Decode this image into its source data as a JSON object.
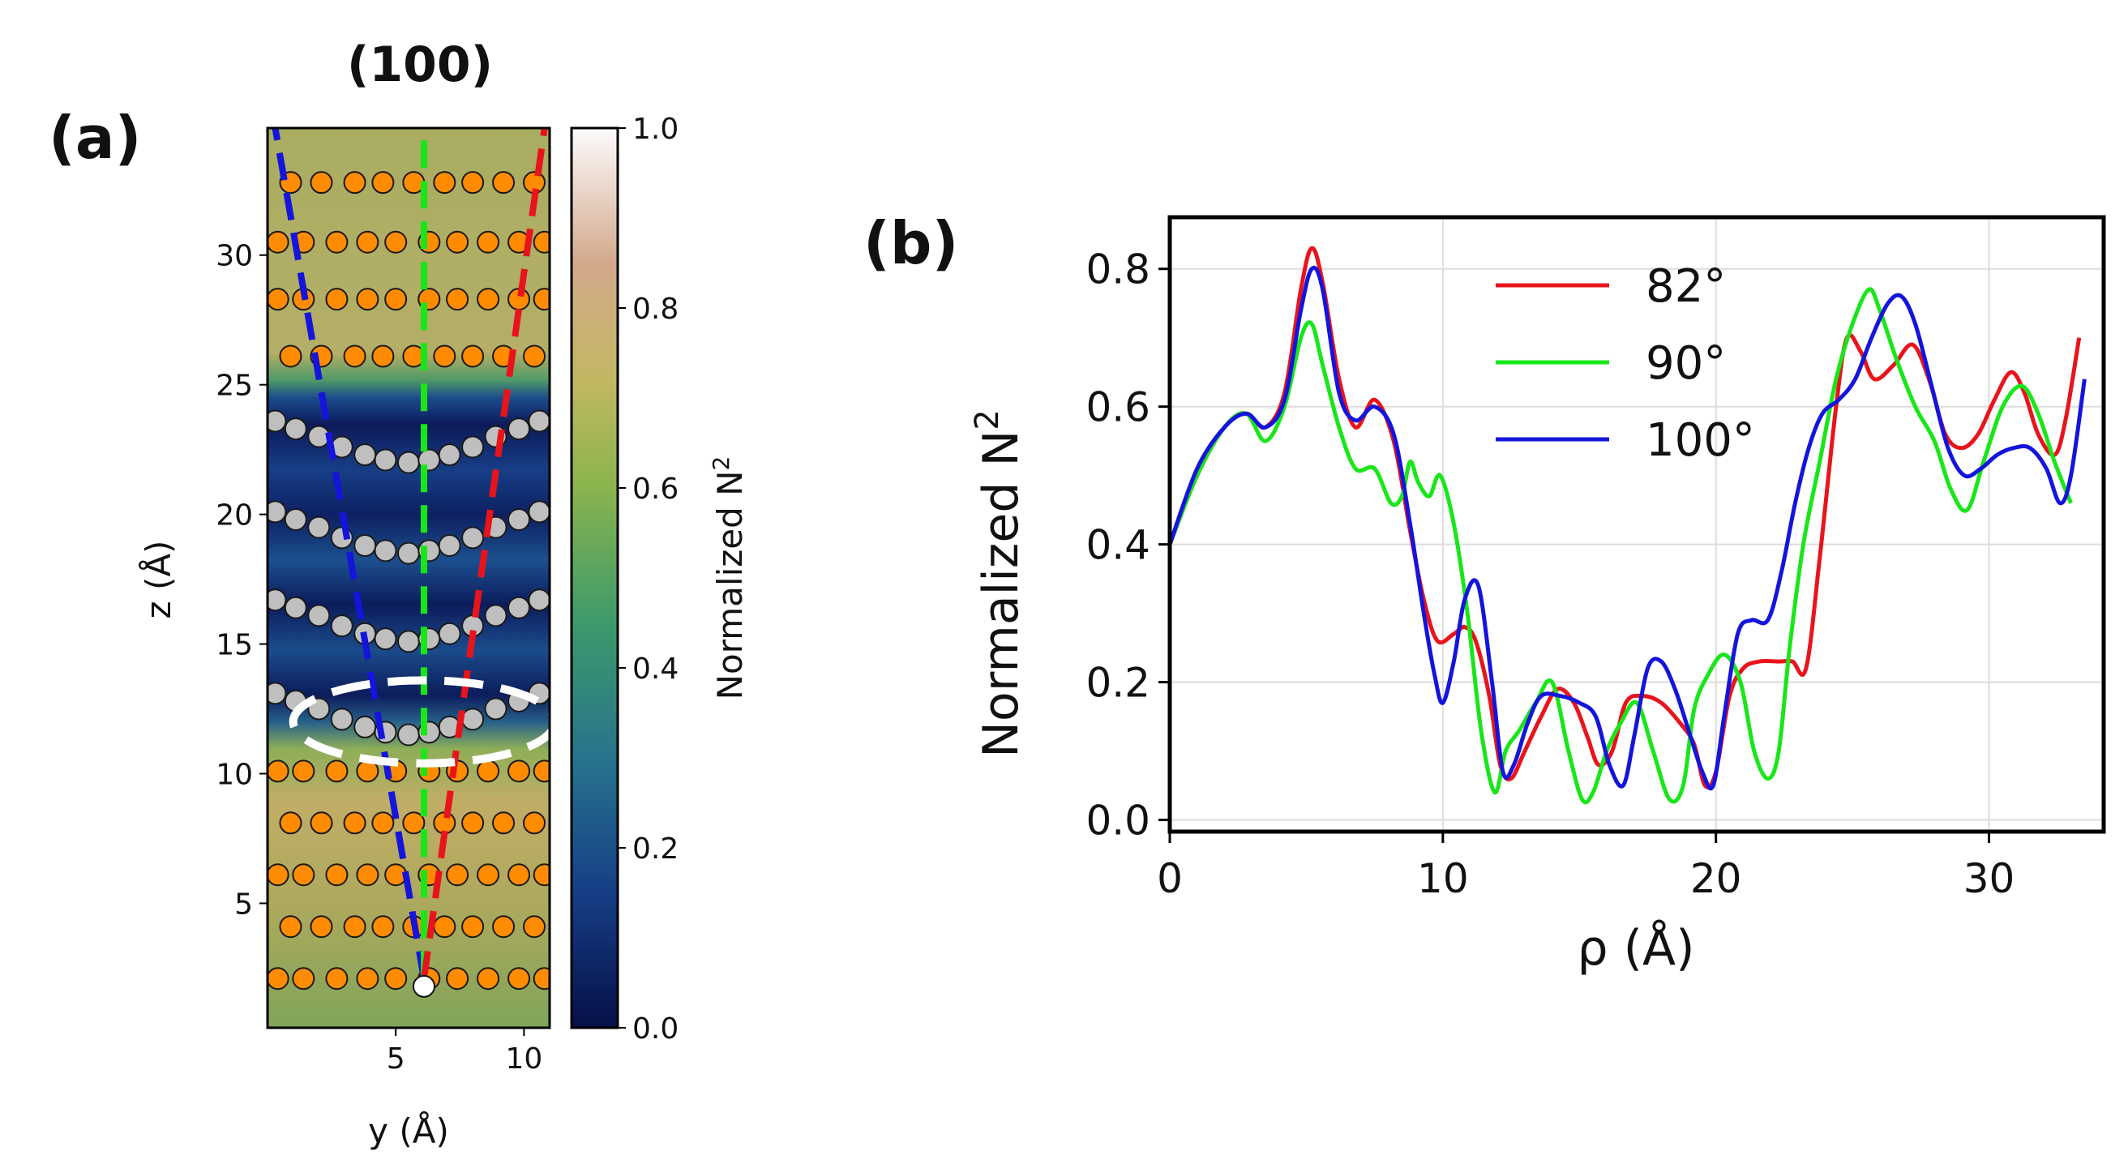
{
  "panel_a": {
    "label": "(a)",
    "title": "(100)",
    "xlabel": "y (Å)",
    "ylabel": "z (Å)",
    "xticks": [
      "5",
      "10"
    ],
    "yticks": [
      "5",
      "10",
      "15",
      "20",
      "25",
      "30"
    ],
    "colorbar": {
      "label": "Normalized N",
      "label_sup": "2",
      "ticks": [
        "0.0",
        "0.2",
        "0.4",
        "0.6",
        "0.8",
        "1.0"
      ]
    }
  },
  "panel_b": {
    "label": "(b)",
    "ylabel": "Normalized N",
    "ylabel_sup": "2",
    "xlabel": "ρ (Å)",
    "xticks": [
      "0",
      "10",
      "20",
      "30"
    ],
    "yticks": [
      "0.0",
      "0.2",
      "0.4",
      "0.6",
      "0.8"
    ],
    "legend": [
      "82°",
      "90°",
      "100°"
    ]
  },
  "colors": {
    "red": "#e8141c",
    "green": "#19e619",
    "blue": "#1414dc",
    "atom_orange": "#ff8c00",
    "atom_gray": "#bfbfbf"
  },
  "chart_data": [
    {
      "type": "heatmap",
      "title": "(100)",
      "xlabel": "y (Å)",
      "ylabel": "z (Å)",
      "xlim": [
        0,
        11
      ],
      "ylim": [
        0.2,
        34.9
      ],
      "colorbar_label": "Normalized N^2",
      "colorbar_range": [
        0.0,
        1.0
      ],
      "atom_rows": [
        {
          "z": 2.1,
          "kind": "orange",
          "y": [
            0.4,
            1.4,
            2.7,
            3.9,
            5.0,
            6.3,
            7.4,
            8.6,
            9.8,
            10.8
          ]
        },
        {
          "z": 4.1,
          "kind": "orange",
          "y": [
            0.9,
            2.1,
            3.4,
            4.5,
            5.7,
            6.9,
            8.0,
            9.2,
            10.4
          ]
        },
        {
          "z": 6.1,
          "kind": "orange",
          "y": [
            0.4,
            1.4,
            2.7,
            3.9,
            5.0,
            6.3,
            7.4,
            8.6,
            9.8,
            10.8
          ]
        },
        {
          "z": 8.1,
          "kind": "orange",
          "y": [
            0.9,
            2.1,
            3.4,
            4.5,
            5.7,
            6.9,
            8.0,
            9.2,
            10.4
          ]
        },
        {
          "z": 10.1,
          "kind": "orange",
          "y": [
            0.4,
            1.4,
            2.7,
            3.9,
            5.0,
            6.3,
            7.4,
            8.6,
            9.8,
            10.8
          ]
        },
        {
          "z": 26.1,
          "kind": "orange",
          "y": [
            0.9,
            2.1,
            3.4,
            4.5,
            5.7,
            6.9,
            8.0,
            9.2,
            10.4
          ]
        },
        {
          "z": 28.3,
          "kind": "orange",
          "y": [
            0.4,
            1.4,
            2.7,
            3.9,
            5.0,
            6.3,
            7.4,
            8.6,
            9.8,
            10.8
          ]
        },
        {
          "z": 30.5,
          "kind": "orange",
          "y": [
            0.4,
            1.4,
            2.7,
            3.9,
            5.0,
            6.3,
            7.4,
            8.6,
            9.8,
            10.8
          ]
        },
        {
          "z": 32.8,
          "kind": "orange",
          "y": [
            0.9,
            2.1,
            3.4,
            4.5,
            5.7,
            6.9,
            8.0,
            9.2,
            10.4
          ]
        }
      ],
      "gray_rows": [
        {
          "y": [
            0.3,
            1.1,
            2.0,
            2.9,
            3.8,
            4.6,
            5.5,
            6.3,
            7.1,
            8.0,
            8.9,
            9.8,
            10.6
          ],
          "z": [
            23.6,
            23.3,
            23.0,
            22.6,
            22.3,
            22.1,
            22.0,
            22.1,
            22.3,
            22.6,
            23.0,
            23.3,
            23.6
          ]
        },
        {
          "y": [
            0.3,
            1.1,
            2.0,
            2.9,
            3.8,
            4.6,
            5.5,
            6.3,
            7.1,
            8.0,
            8.9,
            9.8,
            10.6
          ],
          "z": [
            20.1,
            19.8,
            19.5,
            19.1,
            18.8,
            18.6,
            18.5,
            18.6,
            18.8,
            19.1,
            19.5,
            19.8,
            20.1
          ]
        },
        {
          "y": [
            0.3,
            1.1,
            2.0,
            2.9,
            3.8,
            4.6,
            5.5,
            6.3,
            7.1,
            8.0,
            8.9,
            9.8,
            10.6
          ],
          "z": [
            16.7,
            16.4,
            16.1,
            15.7,
            15.4,
            15.2,
            15.1,
            15.2,
            15.4,
            15.7,
            16.1,
            16.4,
            16.7
          ]
        },
        {
          "y": [
            0.3,
            1.1,
            2.0,
            2.9,
            3.8,
            4.6,
            5.5,
            6.3,
            7.1,
            8.0,
            8.9,
            9.8,
            10.6
          ],
          "z": [
            13.1,
            12.8,
            12.5,
            12.1,
            11.8,
            11.6,
            11.5,
            11.6,
            11.8,
            12.1,
            12.5,
            12.8,
            13.1
          ]
        }
      ],
      "dashed_lines": [
        {
          "color": "blue",
          "from": [
            6.1,
            2.1
          ],
          "to": [
            0.3,
            34.9
          ]
        },
        {
          "color": "green",
          "from": [
            6.1,
            2.1
          ],
          "to": [
            6.1,
            34.9
          ]
        },
        {
          "color": "red",
          "from": [
            6.1,
            2.1
          ],
          "to": [
            10.8,
            34.9
          ]
        }
      ],
      "origin_marker": [
        6.1,
        1.8
      ],
      "highlight_ellipse": {
        "center": [
          6.1,
          12.0
        ],
        "width": 10.2,
        "height": 3.2
      },
      "bands": [
        {
          "z_range": [
            0.2,
            11.0
          ],
          "level": 0.55
        },
        {
          "z_range": [
            11.0,
            25.5
          ],
          "level": 0.1
        },
        {
          "z_range": [
            25.5,
            34.9
          ],
          "level": 0.6
        }
      ]
    },
    {
      "type": "line",
      "xlabel": "ρ (Å)",
      "ylabel": "Normalized N^2",
      "xlim": [
        0,
        34.2
      ],
      "ylim": [
        -0.017,
        0.875
      ],
      "grid": true,
      "legend_position": "top-center",
      "series": [
        {
          "name": "82°",
          "color": "red",
          "x": [
            0,
            1.0,
            2.0,
            2.8,
            3.5,
            4.2,
            4.8,
            5.2,
            5.6,
            6.2,
            6.8,
            7.5,
            8.2,
            8.8,
            9.3,
            9.8,
            10.4,
            10.8,
            11.2,
            11.7,
            12.1,
            12.5,
            13.0,
            13.6,
            14.2,
            14.8,
            15.3,
            15.7,
            16.2,
            16.7,
            17.3,
            18.0,
            18.7,
            19.2,
            19.6,
            20.0,
            20.5,
            21.0,
            21.6,
            22.3,
            22.8,
            23.3,
            23.8,
            24.4,
            24.8,
            25.3,
            25.8,
            26.5,
            27.2,
            27.8,
            28.4,
            29.0,
            29.6,
            30.2,
            30.8,
            31.3,
            31.8,
            32.4,
            32.8,
            33.3
          ],
          "y": [
            0.4,
            0.5,
            0.57,
            0.59,
            0.57,
            0.62,
            0.77,
            0.83,
            0.78,
            0.64,
            0.57,
            0.61,
            0.55,
            0.42,
            0.32,
            0.26,
            0.27,
            0.28,
            0.26,
            0.18,
            0.08,
            0.06,
            0.1,
            0.15,
            0.19,
            0.17,
            0.12,
            0.08,
            0.1,
            0.17,
            0.18,
            0.17,
            0.14,
            0.11,
            0.05,
            0.07,
            0.18,
            0.22,
            0.23,
            0.23,
            0.23,
            0.22,
            0.38,
            0.6,
            0.7,
            0.68,
            0.64,
            0.66,
            0.69,
            0.64,
            0.56,
            0.54,
            0.56,
            0.61,
            0.65,
            0.62,
            0.56,
            0.53,
            0.58,
            0.7
          ]
        },
        {
          "name": "90°",
          "color": "green",
          "x": [
            0,
            1.0,
            2.0,
            2.8,
            3.5,
            4.2,
            4.8,
            5.2,
            5.6,
            6.2,
            6.8,
            7.5,
            8.1,
            8.5,
            8.8,
            9.1,
            9.5,
            9.9,
            10.4,
            10.9,
            11.4,
            11.9,
            12.3,
            12.8,
            13.4,
            14.0,
            14.6,
            15.1,
            15.5,
            16.0,
            16.5,
            17.1,
            17.7,
            18.3,
            18.8,
            19.2,
            19.7,
            20.3,
            20.9,
            21.4,
            21.9,
            22.3,
            22.7,
            23.2,
            23.8,
            24.4,
            25.0,
            25.6,
            26.0,
            26.6,
            27.3,
            28.0,
            28.6,
            29.2,
            29.8,
            30.5,
            31.2,
            31.8,
            32.4,
            33.0
          ],
          "y": [
            0.4,
            0.5,
            0.57,
            0.59,
            0.55,
            0.6,
            0.7,
            0.72,
            0.66,
            0.57,
            0.51,
            0.51,
            0.46,
            0.47,
            0.52,
            0.49,
            0.47,
            0.5,
            0.43,
            0.3,
            0.13,
            0.04,
            0.1,
            0.13,
            0.17,
            0.2,
            0.1,
            0.03,
            0.04,
            0.1,
            0.14,
            0.17,
            0.1,
            0.03,
            0.05,
            0.16,
            0.21,
            0.24,
            0.2,
            0.1,
            0.06,
            0.1,
            0.25,
            0.4,
            0.52,
            0.64,
            0.72,
            0.77,
            0.74,
            0.67,
            0.6,
            0.55,
            0.48,
            0.45,
            0.52,
            0.6,
            0.63,
            0.59,
            0.52,
            0.46
          ]
        },
        {
          "name": "100°",
          "color": "blue",
          "x": [
            0,
            1.0,
            2.0,
            2.8,
            3.5,
            4.2,
            4.8,
            5.2,
            5.6,
            6.2,
            6.8,
            7.5,
            8.2,
            8.8,
            9.3,
            9.7,
            10.0,
            10.4,
            10.8,
            11.3,
            11.8,
            12.2,
            12.6,
            13.1,
            13.6,
            14.3,
            15.0,
            15.6,
            16.1,
            16.6,
            17.0,
            17.5,
            18.0,
            18.5,
            19.0,
            19.5,
            19.9,
            20.3,
            20.8,
            21.3,
            21.9,
            22.4,
            22.9,
            23.4,
            23.9,
            24.5,
            25.1,
            25.7,
            26.3,
            26.8,
            27.3,
            27.9,
            28.5,
            29.1,
            29.7,
            30.3,
            30.9,
            31.5,
            32.1,
            32.6,
            33.0,
            33.5
          ],
          "y": [
            0.4,
            0.51,
            0.57,
            0.59,
            0.57,
            0.61,
            0.74,
            0.8,
            0.77,
            0.62,
            0.58,
            0.6,
            0.56,
            0.43,
            0.3,
            0.21,
            0.17,
            0.23,
            0.32,
            0.34,
            0.2,
            0.07,
            0.08,
            0.14,
            0.18,
            0.18,
            0.17,
            0.15,
            0.08,
            0.05,
            0.12,
            0.22,
            0.23,
            0.19,
            0.13,
            0.07,
            0.05,
            0.15,
            0.27,
            0.29,
            0.29,
            0.36,
            0.46,
            0.54,
            0.59,
            0.61,
            0.64,
            0.7,
            0.75,
            0.76,
            0.72,
            0.63,
            0.54,
            0.5,
            0.51,
            0.53,
            0.54,
            0.54,
            0.51,
            0.46,
            0.5,
            0.64
          ]
        }
      ]
    }
  ]
}
